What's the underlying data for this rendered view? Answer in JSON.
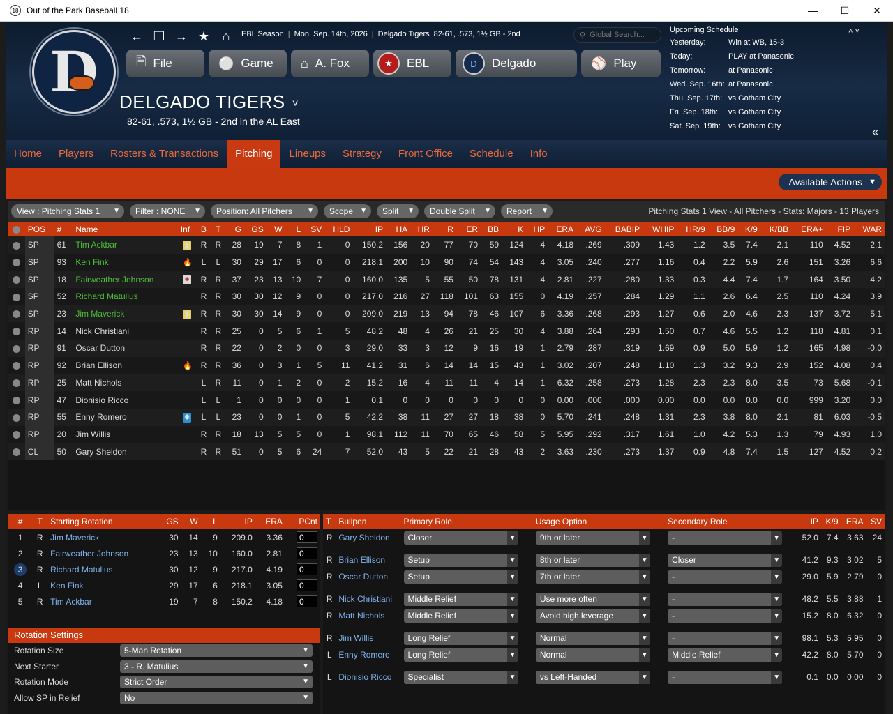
{
  "window": {
    "title": "Out of the Park Baseball 18",
    "app_icon": "18"
  },
  "crumb": {
    "season": "EBL Season",
    "date": "Mon. Sep. 14th, 2026",
    "team": "Delgado Tigers",
    "record": "82-61, .573, 1½ GB - 2nd"
  },
  "search": {
    "placeholder": "Global Search..."
  },
  "main_buttons": {
    "file": "File",
    "game": "Game",
    "manager": "A. Fox",
    "league": "EBL",
    "team": "Delgado",
    "play": "Play"
  },
  "team": {
    "name": "DELGADO TIGERS",
    "record_line": "82-61, .573, 1½ GB - 2nd in the AL East"
  },
  "schedule": {
    "title": "Upcoming Schedule",
    "rows": [
      {
        "k": "Yesterday:",
        "v": "Win at WB, 15-3"
      },
      {
        "k": "Today:",
        "v": "PLAY at Panasonic"
      },
      {
        "k": "Tomorrow:",
        "v": "at Panasonic"
      },
      {
        "k": "Wed. Sep. 16th:",
        "v": "at Panasonic"
      },
      {
        "k": "Thu. Sep. 17th:",
        "v": "vs Gotham City"
      },
      {
        "k": "Fri. Sep. 18th:",
        "v": "vs Gotham City"
      },
      {
        "k": "Sat. Sep. 19th:",
        "v": "vs Gotham City"
      }
    ]
  },
  "tabs": [
    "Home",
    "Players",
    "Rosters & Transactions",
    "Pitching",
    "Lineups",
    "Strategy",
    "Front Office",
    "Schedule",
    "Info"
  ],
  "active_tab": "Pitching",
  "actions": {
    "available": "Available Actions"
  },
  "toolbar": {
    "view": "View : Pitching Stats 1",
    "filter": "Filter : NONE",
    "position": "Position: All Pitchers",
    "scope": "Scope",
    "split": "Split",
    "double_split": "Double Split",
    "report": "Report",
    "info": "Pitching Stats 1 View - All Pitchers - Stats: Majors - 13 Players"
  },
  "stats": {
    "headers": [
      "POS",
      "#",
      "Name",
      "Inf",
      "B",
      "T",
      "G",
      "GS",
      "W",
      "L",
      "SV",
      "HLD",
      "IP",
      "HA",
      "HR",
      "R",
      "ER",
      "BB",
      "K",
      "HP",
      "ERA",
      "AVG",
      "BABIP",
      "WHIP",
      "HR/9",
      "BB/9",
      "K/9",
      "K/BB",
      "ERA+",
      "FIP",
      "WAR"
    ],
    "rows": [
      {
        "pos": "SP",
        "num": "61",
        "name": "Tim Ackbar",
        "color": "green",
        "inf": "bat",
        "b": "R",
        "t": "R",
        "g": "28",
        "gs": "19",
        "w": "7",
        "l": "8",
        "sv": "1",
        "hld": "0",
        "ip": "150.2",
        "ha": "156",
        "hr": "20",
        "r": "77",
        "er": "70",
        "bb": "59",
        "k": "124",
        "hp": "4",
        "era": "4.18",
        "avg": ".269",
        "babip": ".309",
        "whip": "1.43",
        "hr9": "1.2",
        "bb9": "3.5",
        "k9": "7.4",
        "kbb": "2.1",
        "eraplus": "110",
        "fip": "4.52",
        "war": "2.1"
      },
      {
        "pos": "SP",
        "num": "93",
        "name": "Ken Fink",
        "color": "green",
        "inf": "flame",
        "b": "L",
        "t": "L",
        "g": "30",
        "gs": "29",
        "w": "17",
        "l": "6",
        "sv": "0",
        "hld": "0",
        "ip": "218.1",
        "ha": "200",
        "hr": "10",
        "r": "90",
        "er": "74",
        "bb": "54",
        "k": "143",
        "hp": "4",
        "era": "3.05",
        "avg": ".240",
        "babip": ".277",
        "whip": "1.16",
        "hr9": "0.4",
        "bb9": "2.2",
        "k9": "5.9",
        "kbb": "2.6",
        "eraplus": "151",
        "fip": "3.26",
        "war": "6.6"
      },
      {
        "pos": "SP",
        "num": "18",
        "name": "Fairweather Johnson",
        "color": "green",
        "inf": "medic",
        "b": "R",
        "t": "R",
        "g": "37",
        "gs": "23",
        "w": "13",
        "l": "10",
        "sv": "7",
        "hld": "0",
        "ip": "160.0",
        "ha": "135",
        "hr": "5",
        "r": "55",
        "er": "50",
        "bb": "78",
        "k": "131",
        "hp": "4",
        "era": "2.81",
        "avg": ".227",
        "babip": ".280",
        "whip": "1.33",
        "hr9": "0.3",
        "bb9": "4.4",
        "k9": "7.4",
        "kbb": "1.7",
        "eraplus": "164",
        "fip": "3.50",
        "war": "4.2"
      },
      {
        "pos": "SP",
        "num": "52",
        "name": "Richard Matulius",
        "color": "green",
        "inf": "",
        "b": "R",
        "t": "R",
        "g": "30",
        "gs": "30",
        "w": "12",
        "l": "9",
        "sv": "0",
        "hld": "0",
        "ip": "217.0",
        "ha": "216",
        "hr": "27",
        "r": "118",
        "er": "101",
        "bb": "63",
        "k": "155",
        "hp": "0",
        "era": "4.19",
        "avg": ".257",
        "babip": ".284",
        "whip": "1.29",
        "hr9": "1.1",
        "bb9": "2.6",
        "k9": "6.4",
        "kbb": "2.5",
        "eraplus": "110",
        "fip": "4.24",
        "war": "3.9"
      },
      {
        "pos": "SP",
        "num": "23",
        "name": "Jim Maverick",
        "color": "green",
        "inf": "bat",
        "b": "R",
        "t": "R",
        "g": "30",
        "gs": "30",
        "w": "14",
        "l": "9",
        "sv": "0",
        "hld": "0",
        "ip": "209.0",
        "ha": "219",
        "hr": "13",
        "r": "94",
        "er": "78",
        "bb": "46",
        "k": "107",
        "hp": "6",
        "era": "3.36",
        "avg": ".268",
        "babip": ".293",
        "whip": "1.27",
        "hr9": "0.6",
        "bb9": "2.0",
        "k9": "4.6",
        "kbb": "2.3",
        "eraplus": "137",
        "fip": "3.72",
        "war": "5.1"
      },
      {
        "pos": "RP",
        "num": "14",
        "name": "Nick Christiani",
        "color": "",
        "inf": "",
        "b": "R",
        "t": "R",
        "g": "25",
        "gs": "0",
        "w": "5",
        "l": "6",
        "sv": "1",
        "hld": "5",
        "ip": "48.2",
        "ha": "48",
        "hr": "4",
        "r": "26",
        "er": "21",
        "bb": "25",
        "k": "30",
        "hp": "4",
        "era": "3.88",
        "avg": ".264",
        "babip": ".293",
        "whip": "1.50",
        "hr9": "0.7",
        "bb9": "4.6",
        "k9": "5.5",
        "kbb": "1.2",
        "eraplus": "118",
        "fip": "4.81",
        "war": "0.1"
      },
      {
        "pos": "RP",
        "num": "91",
        "name": "Oscar Dutton",
        "color": "",
        "inf": "",
        "b": "R",
        "t": "R",
        "g": "22",
        "gs": "0",
        "w": "2",
        "l": "0",
        "sv": "0",
        "hld": "3",
        "ip": "29.0",
        "ha": "33",
        "hr": "3",
        "r": "12",
        "er": "9",
        "bb": "16",
        "k": "19",
        "hp": "1",
        "era": "2.79",
        "avg": ".287",
        "babip": ".319",
        "whip": "1.69",
        "hr9": "0.9",
        "bb9": "5.0",
        "k9": "5.9",
        "kbb": "1.2",
        "eraplus": "165",
        "fip": "4.98",
        "war": "-0.0"
      },
      {
        "pos": "RP",
        "num": "92",
        "name": "Brian Ellison",
        "color": "",
        "inf": "flame",
        "b": "R",
        "t": "R",
        "g": "36",
        "gs": "0",
        "w": "3",
        "l": "1",
        "sv": "5",
        "hld": "11",
        "ip": "41.2",
        "ha": "31",
        "hr": "6",
        "r": "14",
        "er": "14",
        "bb": "15",
        "k": "43",
        "hp": "1",
        "era": "3.02",
        "avg": ".207",
        "babip": ".248",
        "whip": "1.10",
        "hr9": "1.3",
        "bb9": "3.2",
        "k9": "9.3",
        "kbb": "2.9",
        "eraplus": "152",
        "fip": "4.08",
        "war": "0.4"
      },
      {
        "pos": "RP",
        "num": "25",
        "name": "Matt Nichols",
        "color": "",
        "inf": "",
        "b": "L",
        "t": "R",
        "g": "11",
        "gs": "0",
        "w": "1",
        "l": "2",
        "sv": "0",
        "hld": "2",
        "ip": "15.2",
        "ha": "16",
        "hr": "4",
        "r": "11",
        "er": "11",
        "bb": "4",
        "k": "14",
        "hp": "1",
        "era": "6.32",
        "avg": ".258",
        "babip": ".273",
        "whip": "1.28",
        "hr9": "2.3",
        "bb9": "2.3",
        "k9": "8.0",
        "kbb": "3.5",
        "eraplus": "73",
        "fip": "5.68",
        "war": "-0.1"
      },
      {
        "pos": "RP",
        "num": "47",
        "name": "Dionisio Ricco",
        "color": "",
        "inf": "",
        "b": "L",
        "t": "L",
        "g": "1",
        "gs": "0",
        "w": "0",
        "l": "0",
        "sv": "0",
        "hld": "1",
        "ip": "0.1",
        "ha": "0",
        "hr": "0",
        "r": "0",
        "er": "0",
        "bb": "0",
        "k": "0",
        "hp": "0",
        "era": "0.00",
        "avg": ".000",
        "babip": ".000",
        "whip": "0.00",
        "hr9": "0.0",
        "bb9": "0.0",
        "k9": "0.0",
        "kbb": "0.0",
        "eraplus": "999",
        "fip": "3.20",
        "war": "0.0"
      },
      {
        "pos": "RP",
        "num": "55",
        "name": "Enny Romero",
        "color": "",
        "inf": "snow",
        "b": "L",
        "t": "L",
        "g": "23",
        "gs": "0",
        "w": "0",
        "l": "1",
        "sv": "0",
        "hld": "5",
        "ip": "42.2",
        "ha": "38",
        "hr": "11",
        "r": "27",
        "er": "27",
        "bb": "18",
        "k": "38",
        "hp": "0",
        "era": "5.70",
        "avg": ".241",
        "babip": ".248",
        "whip": "1.31",
        "hr9": "2.3",
        "bb9": "3.8",
        "k9": "8.0",
        "kbb": "2.1",
        "eraplus": "81",
        "fip": "6.03",
        "war": "-0.5"
      },
      {
        "pos": "RP",
        "num": "20",
        "name": "Jim Willis",
        "color": "",
        "inf": "",
        "b": "R",
        "t": "R",
        "g": "18",
        "gs": "13",
        "w": "5",
        "l": "5",
        "sv": "0",
        "hld": "1",
        "ip": "98.1",
        "ha": "112",
        "hr": "11",
        "r": "70",
        "er": "65",
        "bb": "46",
        "k": "58",
        "hp": "5",
        "era": "5.95",
        "avg": ".292",
        "babip": ".317",
        "whip": "1.61",
        "hr9": "1.0",
        "bb9": "4.2",
        "k9": "5.3",
        "kbb": "1.3",
        "eraplus": "79",
        "fip": "4.93",
        "war": "1.0"
      },
      {
        "pos": "CL",
        "num": "50",
        "name": "Gary Sheldon",
        "color": "",
        "inf": "",
        "b": "R",
        "t": "R",
        "g": "51",
        "gs": "0",
        "w": "5",
        "l": "6",
        "sv": "24",
        "hld": "7",
        "ip": "52.0",
        "ha": "43",
        "hr": "5",
        "r": "22",
        "er": "21",
        "bb": "28",
        "k": "43",
        "hp": "2",
        "era": "3.63",
        "avg": ".230",
        "babip": ".273",
        "whip": "1.37",
        "hr9": "0.9",
        "bb9": "4.8",
        "k9": "7.4",
        "kbb": "1.5",
        "eraplus": "127",
        "fip": "4.52",
        "war": "0.2"
      }
    ]
  },
  "rotation": {
    "headers": [
      "#",
      "T",
      "Starting Rotation",
      "GS",
      "W",
      "L",
      "IP",
      "ERA",
      "PCnt"
    ],
    "rows": [
      {
        "n": "1",
        "t": "R",
        "name": "Jim Maverick",
        "gs": "30",
        "w": "14",
        "l": "9",
        "ip": "209.0",
        "era": "3.36",
        "pcnt": "0"
      },
      {
        "n": "2",
        "t": "R",
        "name": "Fairweather Johnson",
        "gs": "23",
        "w": "13",
        "l": "10",
        "ip": "160.0",
        "era": "2.81",
        "pcnt": "0"
      },
      {
        "n": "3",
        "t": "R",
        "name": "Richard Matulius",
        "gs": "30",
        "w": "12",
        "l": "9",
        "ip": "217.0",
        "era": "4.19",
        "pcnt": "0"
      },
      {
        "n": "4",
        "t": "L",
        "name": "Ken Fink",
        "gs": "29",
        "w": "17",
        "l": "6",
        "ip": "218.1",
        "era": "3.05",
        "pcnt": "0"
      },
      {
        "n": "5",
        "t": "R",
        "name": "Tim Ackbar",
        "gs": "19",
        "w": "7",
        "l": "8",
        "ip": "150.2",
        "era": "4.18",
        "pcnt": "0"
      }
    ],
    "settings_title": "Rotation Settings",
    "settings": [
      {
        "k": "Rotation Size",
        "v": "5-Man Rotation"
      },
      {
        "k": "Next Starter",
        "v": "3 - R. Matulius"
      },
      {
        "k": "Rotation Mode",
        "v": "Strict Order"
      },
      {
        "k": "Allow SP in Relief",
        "v": "No"
      }
    ]
  },
  "bullpen": {
    "headers": [
      "T",
      "Bullpen",
      "Primary Role",
      "Usage Option",
      "Secondary Role",
      "IP",
      "K/9",
      "ERA",
      "SV"
    ],
    "rows": [
      {
        "t": "R",
        "name": "Gary Sheldon",
        "primary": "Closer",
        "usage": "9th or later",
        "secondary": "-",
        "ip": "52.0",
        "k9": "7.4",
        "era": "3.63",
        "sv": "24"
      },
      {
        "t": "R",
        "name": "Brian Ellison",
        "primary": "Setup",
        "usage": "8th or later",
        "secondary": "Closer",
        "ip": "41.2",
        "k9": "9.3",
        "era": "3.02",
        "sv": "5"
      },
      {
        "t": "R",
        "name": "Oscar Dutton",
        "primary": "Setup",
        "usage": "7th or later",
        "secondary": "-",
        "ip": "29.0",
        "k9": "5.9",
        "era": "2.79",
        "sv": "0"
      },
      {
        "t": "R",
        "name": "Nick Christiani",
        "primary": "Middle Relief",
        "usage": "Use more often",
        "secondary": "-",
        "ip": "48.2",
        "k9": "5.5",
        "era": "3.88",
        "sv": "1"
      },
      {
        "t": "R",
        "name": "Matt Nichols",
        "primary": "Middle Relief",
        "usage": "Avoid high leverage",
        "secondary": "-",
        "ip": "15.2",
        "k9": "8.0",
        "era": "6.32",
        "sv": "0"
      },
      {
        "t": "R",
        "name": "Jim Willis",
        "primary": "Long Relief",
        "usage": "Normal",
        "secondary": "-",
        "ip": "98.1",
        "k9": "5.3",
        "era": "5.95",
        "sv": "0"
      },
      {
        "t": "L",
        "name": "Enny Romero",
        "primary": "Long Relief",
        "usage": "Normal",
        "secondary": "Middle Relief",
        "ip": "42.2",
        "k9": "8.0",
        "era": "5.70",
        "sv": "0"
      },
      {
        "t": "L",
        "name": "Dionisio Ricco",
        "primary": "Specialist",
        "usage": "vs Left-Handed",
        "secondary": "-",
        "ip": "0.1",
        "k9": "0.0",
        "era": "0.00",
        "sv": "0"
      }
    ],
    "group_breaks_after": [
      0,
      2,
      4,
      6
    ]
  }
}
